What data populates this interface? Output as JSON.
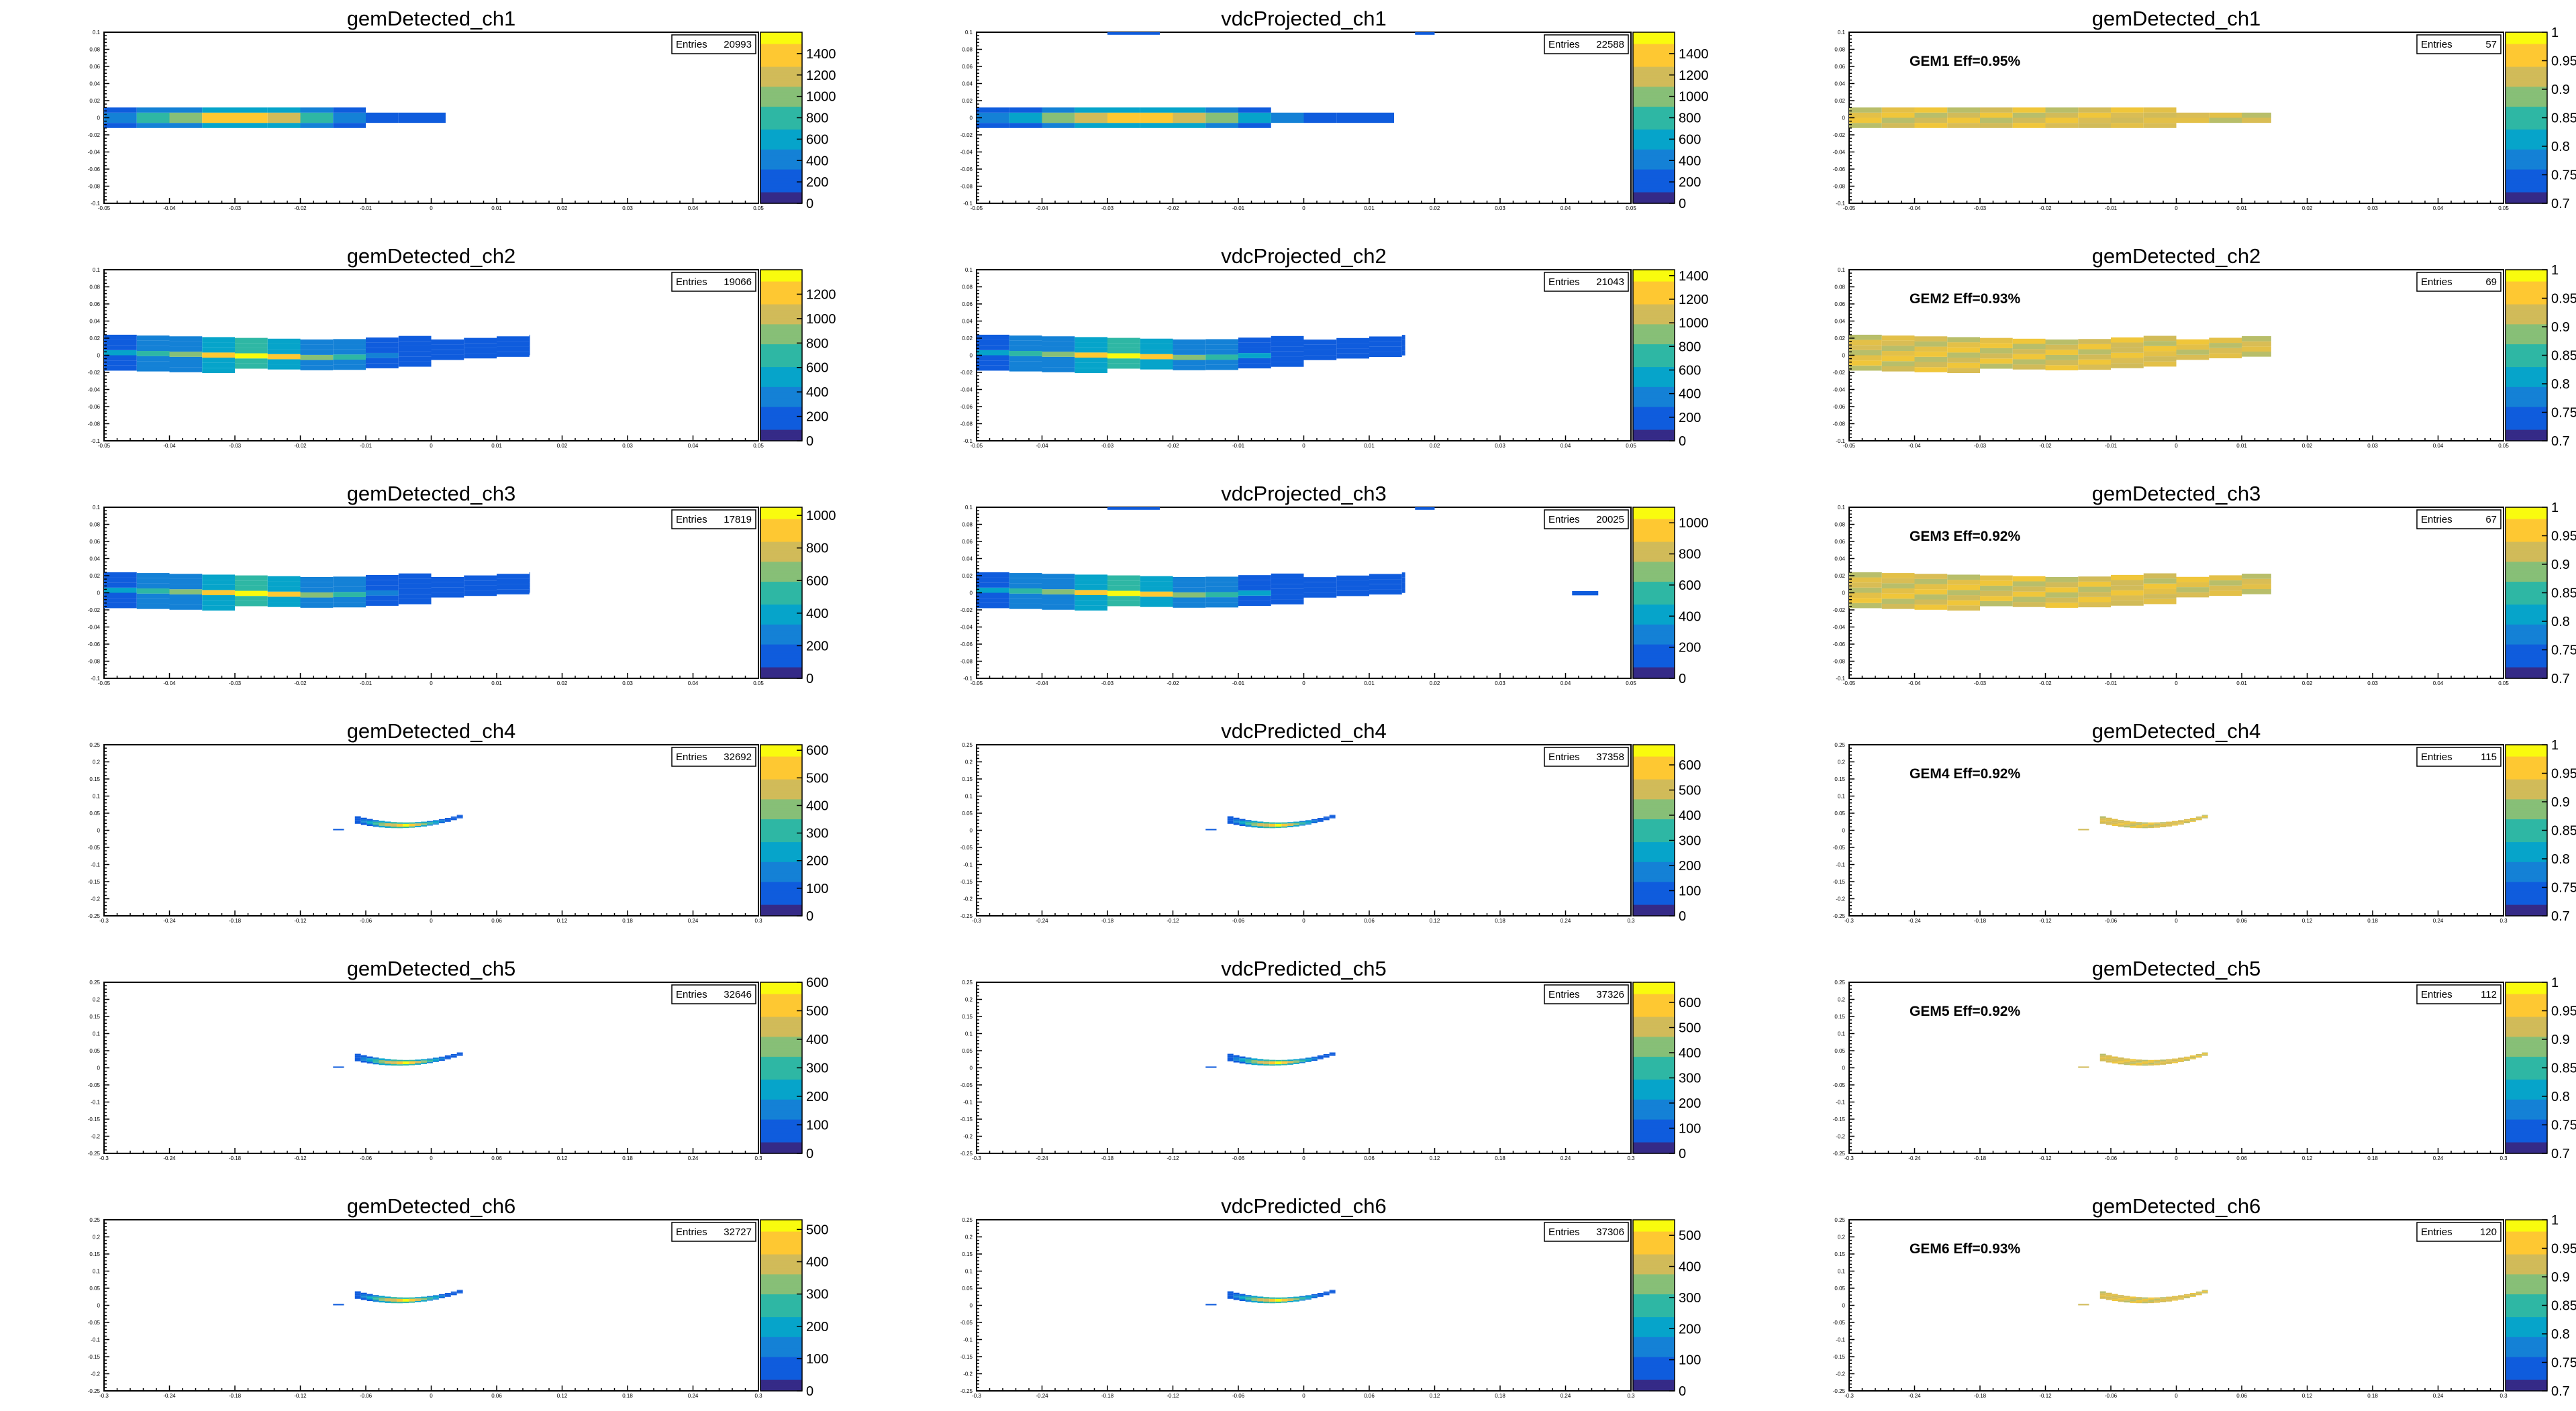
{
  "canvas": {
    "background": "#ffffff"
  },
  "palette": [
    "#352a87",
    "#0f5cdd",
    "#1481d6",
    "#06a4ca",
    "#2eb7a4",
    "#87bf77",
    "#d1bb59",
    "#fec832",
    "#f9fb0e"
  ],
  "chart_data": [
    {
      "type": "heatmap",
      "title": "gemDetected_ch1",
      "entries_label": "Entries",
      "entries": "20993",
      "xlim": [
        -0.05,
        0.05
      ],
      "ylim": [
        -0.1,
        0.1
      ],
      "zlim": [
        0,
        1600
      ],
      "zticks": [
        "0",
        "200",
        "400",
        "600",
        "800",
        "1000",
        "1200",
        "1400"
      ],
      "eff_label": "",
      "row": 0,
      "col": 0
    },
    {
      "type": "heatmap",
      "title": "vdcProjected_ch1",
      "entries_label": "Entries",
      "entries": "22588",
      "xlim": [
        -0.05,
        0.05
      ],
      "ylim": [
        -0.1,
        0.1
      ],
      "zlim": [
        0,
        1600
      ],
      "zticks": [
        "0",
        "200",
        "400",
        "600",
        "800",
        "1000",
        "1200",
        "1400"
      ],
      "eff_label": "",
      "row": 0,
      "col": 1
    },
    {
      "type": "heatmap",
      "title": "gemDetected_ch1",
      "entries_label": "Entries",
      "entries": "57",
      "xlim": [
        -0.05,
        0.05
      ],
      "ylim": [
        -0.1,
        0.1
      ],
      "zlim": [
        0.7,
        1
      ],
      "zticks": [
        "0.7",
        "0.75",
        "0.8",
        "0.85",
        "0.9",
        "0.95",
        "1"
      ],
      "eff_label": "GEM1 Eff=0.95%",
      "row": 0,
      "col": 2
    },
    {
      "type": "heatmap",
      "title": "gemDetected_ch2",
      "entries_label": "Entries",
      "entries": "19066",
      "xlim": [
        -0.05,
        0.05
      ],
      "ylim": [
        -0.1,
        0.1
      ],
      "zlim": [
        0,
        1400
      ],
      "zticks": [
        "0",
        "200",
        "400",
        "600",
        "800",
        "1000",
        "1200"
      ],
      "eff_label": "",
      "row": 1,
      "col": 0
    },
    {
      "type": "heatmap",
      "title": "vdcProjected_ch2",
      "entries_label": "Entries",
      "entries": "21043",
      "xlim": [
        -0.05,
        0.05
      ],
      "ylim": [
        -0.1,
        0.1
      ],
      "zlim": [
        0,
        1450
      ],
      "zticks": [
        "0",
        "200",
        "400",
        "600",
        "800",
        "1000",
        "1200",
        "1400"
      ],
      "eff_label": "",
      "row": 1,
      "col": 1
    },
    {
      "type": "heatmap",
      "title": "gemDetected_ch2",
      "entries_label": "Entries",
      "entries": "69",
      "xlim": [
        -0.05,
        0.05
      ],
      "ylim": [
        -0.1,
        0.1
      ],
      "zlim": [
        0.7,
        1
      ],
      "zticks": [
        "0.7",
        "0.75",
        "0.8",
        "0.85",
        "0.9",
        "0.95",
        "1"
      ],
      "eff_label": "GEM2 Eff=0.93%",
      "row": 1,
      "col": 2
    },
    {
      "type": "heatmap",
      "title": "gemDetected_ch3",
      "entries_label": "Entries",
      "entries": "17819",
      "xlim": [
        -0.05,
        0.05
      ],
      "ylim": [
        -0.1,
        0.1
      ],
      "zlim": [
        0,
        1050
      ],
      "zticks": [
        "0",
        "200",
        "400",
        "600",
        "800",
        "1000"
      ],
      "eff_label": "",
      "row": 2,
      "col": 0
    },
    {
      "type": "heatmap",
      "title": "vdcProjected_ch3",
      "entries_label": "Entries",
      "entries": "20025",
      "xlim": [
        -0.05,
        0.05
      ],
      "ylim": [
        -0.1,
        0.1
      ],
      "zlim": [
        0,
        1100
      ],
      "zticks": [
        "0",
        "200",
        "400",
        "600",
        "800",
        "1000"
      ],
      "eff_label": "",
      "row": 2,
      "col": 1
    },
    {
      "type": "heatmap",
      "title": "gemDetected_ch3",
      "entries_label": "Entries",
      "entries": "67",
      "xlim": [
        -0.05,
        0.05
      ],
      "ylim": [
        -0.1,
        0.1
      ],
      "zlim": [
        0.7,
        1
      ],
      "zticks": [
        "0.7",
        "0.75",
        "0.8",
        "0.85",
        "0.9",
        "0.95",
        "1"
      ],
      "eff_label": "GEM3 Eff=0.92%",
      "row": 2,
      "col": 2
    },
    {
      "type": "heatmap",
      "title": "gemDetected_ch4",
      "entries_label": "Entries",
      "entries": "32692",
      "xlim": [
        -0.3,
        0.3
      ],
      "ylim": [
        -0.25,
        0.25
      ],
      "zlim": [
        0,
        620
      ],
      "zticks": [
        "0",
        "100",
        "200",
        "300",
        "400",
        "500",
        "600"
      ],
      "eff_label": "",
      "row": 3,
      "col": 0
    },
    {
      "type": "heatmap",
      "title": "vdcPredicted_ch4",
      "entries_label": "Entries",
      "entries": "37358",
      "xlim": [
        -0.3,
        0.3
      ],
      "ylim": [
        -0.25,
        0.25
      ],
      "zlim": [
        0,
        680
      ],
      "zticks": [
        "0",
        "100",
        "200",
        "300",
        "400",
        "500",
        "600"
      ],
      "eff_label": "",
      "row": 3,
      "col": 1
    },
    {
      "type": "heatmap",
      "title": "gemDetected_ch4",
      "entries_label": "Entries",
      "entries": "115",
      "xlim": [
        -0.3,
        0.3
      ],
      "ylim": [
        -0.25,
        0.25
      ],
      "zlim": [
        0.7,
        1
      ],
      "zticks": [
        "0.7",
        "0.75",
        "0.8",
        "0.85",
        "0.9",
        "0.95",
        "1"
      ],
      "eff_label": "GEM4 Eff=0.92%",
      "row": 3,
      "col": 2
    },
    {
      "type": "heatmap",
      "title": "gemDetected_ch5",
      "entries_label": "Entries",
      "entries": "32646",
      "xlim": [
        -0.3,
        0.3
      ],
      "ylim": [
        -0.25,
        0.25
      ],
      "zlim": [
        0,
        600
      ],
      "zticks": [
        "0",
        "100",
        "200",
        "300",
        "400",
        "500",
        "600"
      ],
      "eff_label": "",
      "row": 4,
      "col": 0
    },
    {
      "type": "heatmap",
      "title": "vdcPredicted_ch5",
      "entries_label": "Entries",
      "entries": "37326",
      "xlim": [
        -0.3,
        0.3
      ],
      "ylim": [
        -0.25,
        0.25
      ],
      "zlim": [
        0,
        680
      ],
      "zticks": [
        "0",
        "100",
        "200",
        "300",
        "400",
        "500",
        "600"
      ],
      "eff_label": "",
      "row": 4,
      "col": 1
    },
    {
      "type": "heatmap",
      "title": "gemDetected_ch5",
      "entries_label": "Entries",
      "entries": "112",
      "xlim": [
        -0.3,
        0.3
      ],
      "ylim": [
        -0.25,
        0.25
      ],
      "zlim": [
        0.7,
        1
      ],
      "zticks": [
        "0.7",
        "0.75",
        "0.8",
        "0.85",
        "0.9",
        "0.95",
        "1"
      ],
      "eff_label": "GEM5 Eff=0.92%",
      "row": 4,
      "col": 2
    },
    {
      "type": "heatmap",
      "title": "gemDetected_ch6",
      "entries_label": "Entries",
      "entries": "32727",
      "xlim": [
        -0.3,
        0.3
      ],
      "ylim": [
        -0.25,
        0.25
      ],
      "zlim": [
        0,
        530
      ],
      "zticks": [
        "0",
        "100",
        "200",
        "300",
        "400",
        "500"
      ],
      "eff_label": "",
      "row": 5,
      "col": 0
    },
    {
      "type": "heatmap",
      "title": "vdcPredicted_ch6",
      "entries_label": "Entries",
      "entries": "37306",
      "xlim": [
        -0.3,
        0.3
      ],
      "ylim": [
        -0.25,
        0.25
      ],
      "zlim": [
        0,
        550
      ],
      "zticks": [
        "0",
        "100",
        "200",
        "300",
        "400",
        "500"
      ],
      "eff_label": "",
      "row": 5,
      "col": 1
    },
    {
      "type": "heatmap",
      "title": "gemDetected_ch6",
      "entries_label": "Entries",
      "entries": "120",
      "xlim": [
        -0.3,
        0.3
      ],
      "ylim": [
        -0.25,
        0.25
      ],
      "zlim": [
        0.7,
        1
      ],
      "zticks": [
        "0.7",
        "0.75",
        "0.8",
        "0.85",
        "0.9",
        "0.95",
        "1"
      ],
      "eff_label": "GEM6 Eff=0.93%",
      "row": 5,
      "col": 2
    }
  ]
}
